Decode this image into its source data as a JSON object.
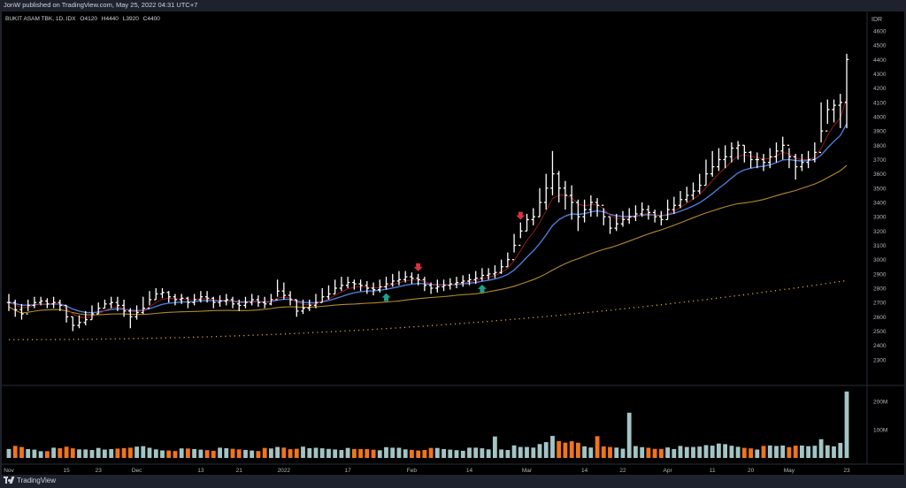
{
  "header": {
    "published": "JonW published on TradingView.com, May 25, 2022 04:31 UTC+7"
  },
  "footer": {
    "brand": "TradingView"
  },
  "chart_data": {
    "type": "bar",
    "legend": {
      "symbol": "BUKIT ASAM TBK, 1D, IDX",
      "O_label": "O",
      "O": "4120",
      "H_label": "H",
      "H": "4440",
      "L_label": "L",
      "L": "3920",
      "C_label": "C",
      "C": "4400"
    },
    "currency": "IDR",
    "price_axis": {
      "ylim": [
        2200,
        4600
      ],
      "ticks": [
        2300,
        2400,
        2500,
        2600,
        2700,
        2800,
        2900,
        3000,
        3100,
        3200,
        3300,
        3400,
        3500,
        3600,
        3700,
        3800,
        3900,
        4000,
        4100,
        4200,
        4300,
        4400,
        4500,
        4600
      ]
    },
    "volume_axis": {
      "ticks": [
        {
          "label": "100M",
          "value": 100
        },
        {
          "label": "200M",
          "value": 200
        }
      ],
      "ymax": 250
    },
    "time_labels": [
      "Nov",
      "15",
      "23",
      "Dec",
      "13",
      "21",
      "2022",
      "17",
      "Feb",
      "14",
      "Mar",
      "14",
      "22",
      "Apr",
      "11",
      "20",
      "May",
      "23"
    ],
    "time_label_index": [
      0,
      9,
      14,
      20,
      30,
      36,
      43,
      53,
      63,
      72,
      81,
      90,
      96,
      103,
      110,
      116,
      122,
      131
    ],
    "ohlc_close": [
      2700,
      2650,
      2620,
      2680,
      2700,
      2710,
      2690,
      2700,
      2680,
      2600,
      2540,
      2560,
      2580,
      2620,
      2660,
      2690,
      2700,
      2680,
      2640,
      2600,
      2630,
      2660,
      2720,
      2760,
      2770,
      2740,
      2720,
      2730,
      2700,
      2720,
      2740,
      2730,
      2700,
      2710,
      2720,
      2690,
      2680,
      2700,
      2720,
      2700,
      2690,
      2720,
      2780,
      2750,
      2720,
      2640,
      2660,
      2680,
      2700,
      2740,
      2760,
      2800,
      2820,
      2840,
      2830,
      2820,
      2800,
      2790,
      2810,
      2830,
      2850,
      2860,
      2880,
      2870,
      2860,
      2820,
      2800,
      2810,
      2820,
      2830,
      2840,
      2850,
      2860,
      2870,
      2890,
      2900,
      2910,
      2950,
      3000,
      3100,
      3200,
      3280,
      3300,
      3400,
      3500,
      3600,
      3500,
      3450,
      3400,
      3300,
      3350,
      3400,
      3380,
      3300,
      3220,
      3250,
      3280,
      3300,
      3320,
      3350,
      3330,
      3300,
      3280,
      3350,
      3380,
      3420,
      3450,
      3480,
      3520,
      3600,
      3650,
      3700,
      3720,
      3780,
      3800,
      3750,
      3700,
      3700,
      3680,
      3720,
      3760,
      3800,
      3720,
      3650,
      3680,
      3700,
      3750,
      3900,
      4050,
      4080,
      4100,
      4400
    ],
    "ohlc_high": [
      2760,
      2720,
      2690,
      2720,
      2740,
      2740,
      2730,
      2740,
      2720,
      2680,
      2600,
      2610,
      2640,
      2680,
      2700,
      2720,
      2740,
      2740,
      2720,
      2660,
      2680,
      2740,
      2780,
      2800,
      2800,
      2780,
      2760,
      2760,
      2740,
      2760,
      2780,
      2780,
      2740,
      2750,
      2760,
      2740,
      2720,
      2740,
      2760,
      2750,
      2740,
      2760,
      2860,
      2840,
      2780,
      2720,
      2720,
      2720,
      2760,
      2800,
      2820,
      2860,
      2880,
      2880,
      2860,
      2860,
      2850,
      2840,
      2860,
      2880,
      2900,
      2920,
      2920,
      2910,
      2900,
      2880,
      2840,
      2860,
      2860,
      2870,
      2880,
      2890,
      2900,
      2920,
      2940,
      2940,
      2960,
      3000,
      3050,
      3180,
      3260,
      3320,
      3360,
      3500,
      3600,
      3760,
      3620,
      3550,
      3520,
      3420,
      3420,
      3450,
      3430,
      3360,
      3300,
      3320,
      3340,
      3360,
      3380,
      3400,
      3380,
      3350,
      3340,
      3420,
      3440,
      3480,
      3510,
      3540,
      3600,
      3700,
      3760,
      3780,
      3800,
      3820,
      3830,
      3800,
      3760,
      3750,
      3740,
      3780,
      3820,
      3860,
      3780,
      3740,
      3740,
      3760,
      3820,
      4100,
      4120,
      4120,
      4160,
      4440
    ],
    "ohlc_low": [
      2640,
      2600,
      2580,
      2640,
      2660,
      2680,
      2660,
      2660,
      2640,
      2560,
      2500,
      2520,
      2540,
      2580,
      2620,
      2660,
      2660,
      2640,
      2600,
      2520,
      2580,
      2620,
      2680,
      2720,
      2730,
      2700,
      2680,
      2690,
      2660,
      2680,
      2700,
      2700,
      2660,
      2670,
      2680,
      2660,
      2640,
      2660,
      2680,
      2670,
      2660,
      2680,
      2740,
      2720,
      2680,
      2600,
      2620,
      2640,
      2660,
      2700,
      2720,
      2760,
      2780,
      2800,
      2790,
      2780,
      2760,
      2750,
      2770,
      2790,
      2810,
      2820,
      2840,
      2830,
      2820,
      2780,
      2760,
      2770,
      2780,
      2790,
      2800,
      2810,
      2820,
      2830,
      2850,
      2860,
      2870,
      2900,
      2950,
      3050,
      3150,
      3200,
      3240,
      3300,
      3350,
      3450,
      3400,
      3350,
      3280,
      3200,
      3260,
      3300,
      3300,
      3240,
      3180,
      3200,
      3230,
      3250,
      3270,
      3300,
      3280,
      3260,
      3240,
      3280,
      3320,
      3360,
      3400,
      3420,
      3460,
      3520,
      3580,
      3620,
      3640,
      3680,
      3700,
      3680,
      3640,
      3640,
      3620,
      3640,
      3680,
      3700,
      3640,
      3560,
      3620,
      3640,
      3680,
      3820,
      3950,
      3960,
      3920,
      3920
    ]
  }
}
